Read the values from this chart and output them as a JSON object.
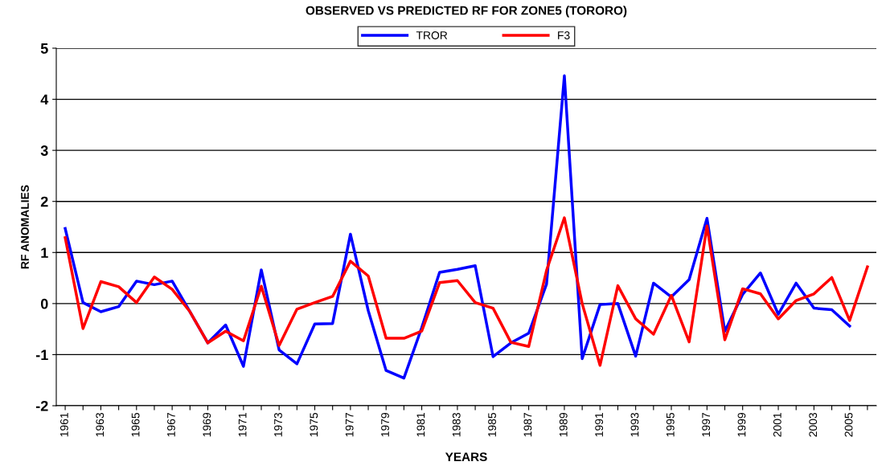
{
  "chart_data": {
    "type": "line",
    "title": "OBSERVED VS PREDICTED RF FOR ZONE5 (TORORO)",
    "xlabel": "YEARS",
    "ylabel": "RF ANOMALIES",
    "categories": [
      "1961",
      null,
      "1963",
      null,
      "1965",
      null,
      "1967",
      null,
      "1969",
      null,
      "1971",
      null,
      "1973",
      null,
      "1975",
      null,
      "1977",
      null,
      "1979",
      null,
      "1981",
      null,
      "1983",
      null,
      "1985",
      null,
      "1987",
      null,
      "1989",
      null,
      "1991",
      null,
      "1993",
      null,
      "1995",
      null,
      "1997",
      null,
      "1999",
      null,
      "2001",
      null,
      "2003",
      null,
      "2005",
      null
    ],
    "series": [
      {
        "name": "TROR",
        "color": "#0000ff",
        "values": [
          1.47,
          0.02,
          -0.16,
          -0.06,
          0.44,
          0.37,
          0.44,
          -0.16,
          -0.77,
          -0.42,
          -1.23,
          0.66,
          -0.91,
          -1.18,
          -0.4,
          -0.39,
          1.36,
          -0.14,
          -1.31,
          -1.46,
          -0.47,
          0.61,
          0.67,
          0.74,
          -1.04,
          -0.77,
          -0.58,
          0.38,
          4.46,
          -1.08,
          -0.02,
          0.0,
          -1.03,
          0.4,
          0.13,
          0.47,
          1.67,
          -0.54,
          0.18,
          0.6,
          -0.21,
          0.4,
          -0.09,
          -0.12,
          -0.44,
          null
        ]
      },
      {
        "name": "F3",
        "color": "#ff0000",
        "values": [
          1.29,
          -0.49,
          0.43,
          0.33,
          0.02,
          0.52,
          0.28,
          -0.16,
          -0.77,
          -0.54,
          -0.73,
          0.34,
          -0.82,
          -0.11,
          0.02,
          0.14,
          0.83,
          0.54,
          -0.68,
          -0.68,
          -0.54,
          0.41,
          0.45,
          0.02,
          -0.09,
          -0.76,
          -0.84,
          0.65,
          1.68,
          0.0,
          -1.21,
          0.35,
          -0.3,
          -0.6,
          0.16,
          -0.75,
          1.52,
          -0.71,
          0.29,
          0.19,
          -0.3,
          0.06,
          0.19,
          0.51,
          -0.33,
          0.72
        ]
      }
    ],
    "ylim": [
      -2,
      5
    ],
    "yticks": [
      -2,
      -1,
      0,
      1,
      2,
      3,
      4,
      5
    ],
    "grid": "y",
    "legend": "top",
    "marker": "none",
    "line_style": "solid"
  }
}
